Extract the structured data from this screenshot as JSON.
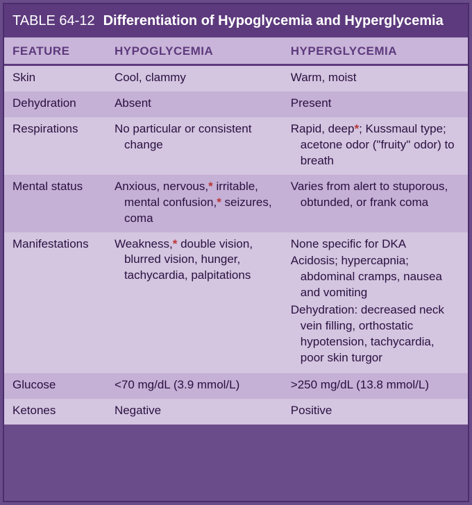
{
  "title": {
    "number": "TABLE 64-12",
    "text": "Differentiation of Hypoglycemia and Hyperglycemia"
  },
  "columns": [
    "FEATURE",
    "HYPOGLYCEMIA",
    "HYPERGLYCEMIA"
  ],
  "rows": [
    {
      "feature": "Skin",
      "hypo": "Cool, clammy",
      "hyper": "Warm, moist",
      "shade": "light"
    },
    {
      "feature": "Dehydration",
      "hypo": "Absent",
      "hyper": "Present",
      "shade": "dark"
    },
    {
      "feature": "Respirations",
      "hypo": "No particular or consistent change",
      "hyper": "Rapid, deep*; Kussmaul type; acetone odor (\"fruity\" odor) to breath",
      "shade": "light",
      "hyper_has_ast": true
    },
    {
      "feature": "Mental status",
      "hypo": "Anxious, nervous,* irritable, mental confusion,* seizures, coma",
      "hyper": "Varies from alert to stuporous, obtunded, or frank coma",
      "shade": "dark",
      "hypo_has_ast": true
    },
    {
      "feature": "Manifestations",
      "hypo": "Weakness,* double vision, blurred vision, hunger, tachycardia, palpitations",
      "hyper_lines": [
        "None specific for DKA",
        "Acidosis; hypercapnia; abdominal cramps, nausea and vomiting",
        "Dehydration: decreased neck vein filling, orthostatic hypotension, tachycardia, poor skin turgor"
      ],
      "shade": "light",
      "hypo_has_ast": true
    },
    {
      "feature": "Glucose",
      "hypo": "<70 mg/dL (3.9 mmol/L)",
      "hyper": ">250 mg/dL (13.8 mmol/L)",
      "shade": "dark"
    },
    {
      "feature": "Ketones",
      "hypo": "Negative",
      "hyper": "Positive",
      "shade": "light"
    }
  ],
  "colors": {
    "title_bg": "#5d3a7d",
    "title_fg": "#ffffff",
    "header_bg": "#c9b5d9",
    "header_fg": "#5d3a7d",
    "header_underline": "#5d3a7d",
    "row_light": "#d4c5e0",
    "row_dark": "#c5b0d6",
    "text": "#2a1040",
    "asterisk": "#b83535",
    "outer_border": "#4a2d6b"
  },
  "fonts": {
    "title_size_pt": 15,
    "header_size_pt": 13,
    "body_size_pt": 13
  }
}
